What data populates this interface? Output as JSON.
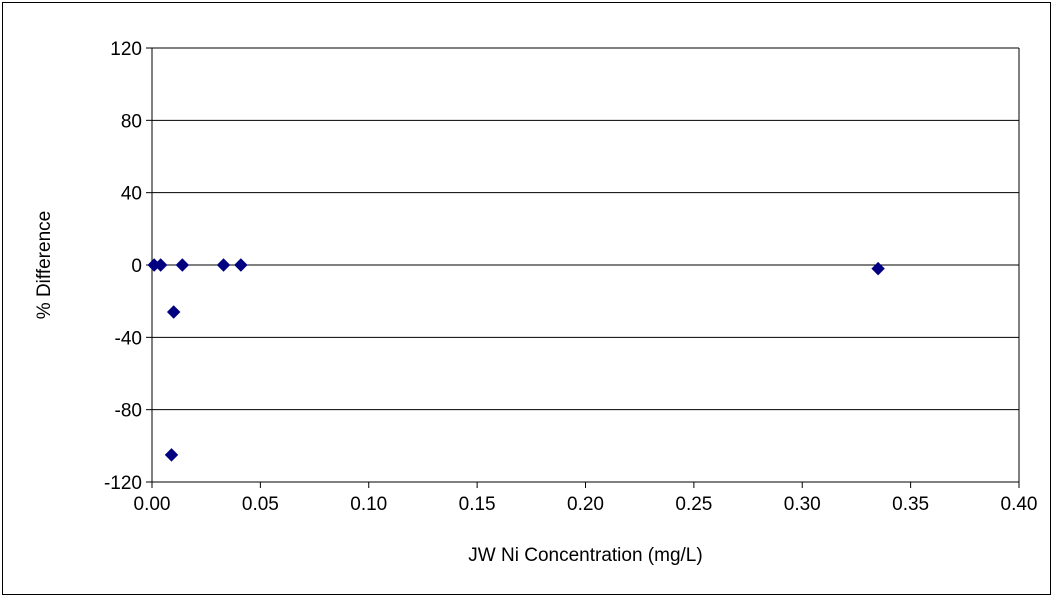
{
  "chart_data": {
    "type": "scatter",
    "xlabel": "JW Ni Concentration (mg/L)",
    "ylabel": "% Difference",
    "xlim": [
      0,
      0.4
    ],
    "ylim": [
      -120,
      120
    ],
    "x_ticks": [
      "0.00",
      "0.05",
      "0.10",
      "0.15",
      "0.20",
      "0.25",
      "0.30",
      "0.35",
      "0.40"
    ],
    "y_ticks": [
      "120",
      "80",
      "40",
      "0",
      "-40",
      "-80",
      "-120"
    ],
    "grid": "horizontal",
    "legend": "none",
    "marker": "diamond",
    "marker_color": "#000080",
    "series": [
      {
        "points": [
          {
            "x": 0.001,
            "y": 0
          },
          {
            "x": 0.004,
            "y": 0
          },
          {
            "x": 0.014,
            "y": 0
          },
          {
            "x": 0.033,
            "y": 0
          },
          {
            "x": 0.041,
            "y": 0
          },
          {
            "x": 0.01,
            "y": -26
          },
          {
            "x": 0.009,
            "y": -105
          },
          {
            "x": 0.335,
            "y": -2
          }
        ]
      }
    ]
  }
}
